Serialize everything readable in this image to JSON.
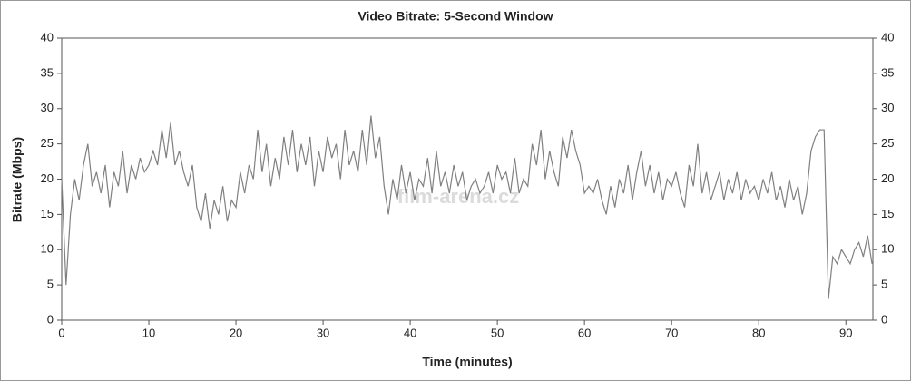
{
  "chart_data": {
    "type": "line",
    "title": "Video Bitrate: 5-Second Window",
    "xlabel": "Time (minutes)",
    "ylabel": "Bitrate (Mbps)",
    "watermark": "film-arena.cz",
    "xlim": [
      0,
      93.1
    ],
    "xticks": [
      0,
      10,
      20,
      30,
      40,
      50,
      60,
      70,
      80,
      90
    ],
    "ylim": [
      0,
      40
    ],
    "yticks": [
      0,
      5,
      10,
      15,
      20,
      25,
      30,
      35,
      40
    ],
    "y2lim": [
      0,
      40
    ],
    "y2ticks": [
      0,
      5,
      10,
      15,
      20,
      25,
      30,
      35,
      40
    ],
    "x": [
      0,
      0.5,
      1,
      1.5,
      2,
      2.5,
      3,
      3.5,
      4,
      4.5,
      5,
      5.5,
      6,
      6.5,
      7,
      7.5,
      8,
      8.5,
      9,
      9.5,
      10,
      10.5,
      11,
      11.5,
      12,
      12.5,
      13,
      13.5,
      14,
      14.5,
      15,
      15.5,
      16,
      16.5,
      17,
      17.5,
      18,
      18.5,
      19,
      19.5,
      20,
      20.5,
      21,
      21.5,
      22,
      22.5,
      23,
      23.5,
      24,
      24.5,
      25,
      25.5,
      26,
      26.5,
      27,
      27.5,
      28,
      28.5,
      29,
      29.5,
      30,
      30.5,
      31,
      31.5,
      32,
      32.5,
      33,
      33.5,
      34,
      34.5,
      35,
      35.5,
      36,
      36.5,
      37,
      37.5,
      38,
      38.5,
      39,
      39.5,
      40,
      40.5,
      41,
      41.5,
      42,
      42.5,
      43,
      43.5,
      44,
      44.5,
      45,
      45.5,
      46,
      46.5,
      47,
      47.5,
      48,
      48.5,
      49,
      49.5,
      50,
      50.5,
      51,
      51.5,
      52,
      52.5,
      53,
      53.5,
      54,
      54.5,
      55,
      55.5,
      56,
      56.5,
      57,
      57.5,
      58,
      58.5,
      59,
      59.5,
      60,
      60.5,
      61,
      61.5,
      62,
      62.5,
      63,
      63.5,
      64,
      64.5,
      65,
      65.5,
      66,
      66.5,
      67,
      67.5,
      68,
      68.5,
      69,
      69.5,
      70,
      70.5,
      71,
      71.5,
      72,
      72.5,
      73,
      73.5,
      74,
      74.5,
      75,
      75.5,
      76,
      76.5,
      77,
      77.5,
      78,
      78.5,
      79,
      79.5,
      80,
      80.5,
      81,
      81.5,
      82,
      82.5,
      83,
      83.5,
      84,
      84.5,
      85,
      85.5,
      86,
      86.5,
      87,
      87.5,
      88,
      88.5,
      89,
      89.5,
      90,
      90.5,
      91,
      91.5,
      92,
      92.5,
      93
    ],
    "series": [
      {
        "name": "Bitrate",
        "color": "#808080",
        "values": [
          20,
          5,
          15,
          20,
          17,
          22,
          25,
          19,
          21,
          18,
          22,
          16,
          21,
          19,
          24,
          18,
          22,
          20,
          23,
          21,
          22,
          24,
          22,
          27,
          23,
          28,
          22,
          24,
          21,
          19,
          22,
          16,
          14,
          18,
          13,
          17,
          15,
          19,
          14,
          17,
          16,
          21,
          18,
          22,
          20,
          27,
          21,
          25,
          19,
          23,
          20,
          26,
          22,
          27,
          21,
          25,
          22,
          26,
          19,
          24,
          21,
          26,
          23,
          25,
          20,
          27,
          22,
          24,
          21,
          27,
          22,
          29,
          23,
          26,
          19,
          15,
          20,
          17,
          22,
          18,
          21,
          17,
          20,
          19,
          23,
          18,
          24,
          19,
          21,
          18,
          22,
          19,
          21,
          17,
          19,
          20,
          18,
          19,
          21,
          18,
          22,
          20,
          21,
          18,
          23,
          18,
          20,
          19,
          25,
          22,
          27,
          20,
          24,
          21,
          19,
          26,
          23,
          27,
          24,
          22,
          18,
          19,
          18,
          20,
          17,
          15,
          19,
          16,
          20,
          18,
          22,
          17,
          21,
          24,
          19,
          22,
          18,
          21,
          17,
          20,
          19,
          21,
          18,
          16,
          22,
          19,
          25,
          18,
          21,
          17,
          19,
          21,
          17,
          20,
          18,
          21,
          17,
          20,
          18,
          19,
          17,
          20,
          18,
          21,
          17,
          19,
          16,
          20,
          17,
          19,
          15,
          18,
          24,
          26,
          27,
          27,
          3,
          9,
          8,
          10,
          9,
          8,
          10,
          11,
          9,
          12,
          8
        ]
      }
    ]
  }
}
